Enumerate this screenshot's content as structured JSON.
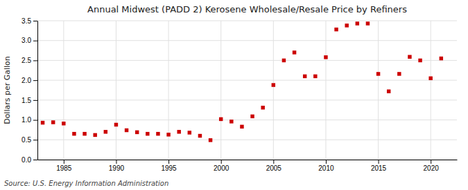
{
  "chart_data": {
    "type": "scatter",
    "title": "Annual Midwest (PADD 2) Kerosene Wholesale/Resale Price by Refiners",
    "y_label": "Dollars per Gallon",
    "annotations": [
      "Source: U.S. Energy Information Administration"
    ],
    "x": [
      1983,
      1984,
      1985,
      1986,
      1987,
      1988,
      1989,
      1990,
      1991,
      1992,
      1993,
      1994,
      1995,
      1996,
      1997,
      1998,
      1999,
      2000,
      2001,
      2002,
      2003,
      2004,
      2005,
      2006,
      2007,
      2008,
      2009,
      2010,
      2011,
      2012,
      2013,
      2014,
      2015,
      2016,
      2017,
      2018,
      2019,
      2020,
      2021
    ],
    "values": [
      0.93,
      0.94,
      0.91,
      0.65,
      0.65,
      0.62,
      0.7,
      0.88,
      0.74,
      0.69,
      0.65,
      0.65,
      0.63,
      0.7,
      0.68,
      0.6,
      0.49,
      1.02,
      0.96,
      0.83,
      1.09,
      1.31,
      1.88,
      2.5,
      2.7,
      2.1,
      2.1,
      2.58,
      3.28,
      3.38,
      3.43,
      3.43,
      2.16,
      1.72,
      2.16,
      2.59,
      2.5,
      2.05,
      2.55
    ],
    "color": "#cc0000",
    "marker": "square",
    "xlim": [
      1982.5,
      2022.5
    ],
    "ylim": [
      0.0,
      3.5
    ],
    "xticks": [
      1985,
      1990,
      1995,
      2000,
      2005,
      2010,
      2015,
      2020
    ],
    "yticks": [
      {
        "value": 0.0,
        "label": "0.0"
      },
      0.5,
      {
        "value": 1.0,
        "label": "1.0"
      },
      1.5,
      {
        "value": 2.0,
        "label": "2.0"
      },
      2.5,
      {
        "value": 3.0,
        "label": "3.0"
      },
      3.5
    ],
    "grid": true
  }
}
